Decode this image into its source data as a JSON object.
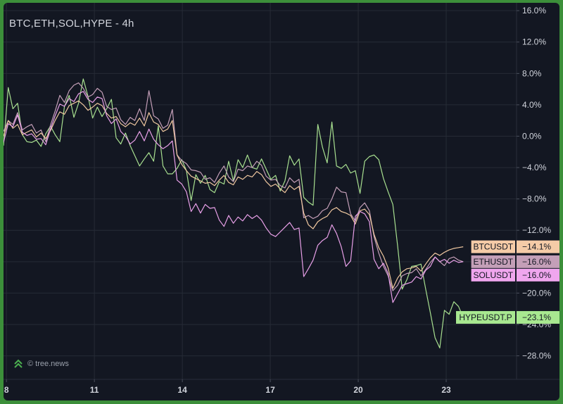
{
  "title": "BTC,ETH,SOL,HYPE - 4h",
  "watermark": "© tree.news",
  "colors": {
    "background": "#131722",
    "outer_border": "#3c8f3a",
    "grid": "#262b36",
    "axis_text": "#d1d4dc"
  },
  "chart_data": {
    "type": "line",
    "title": "BTC,ETH,SOL,HYPE - 4h",
    "xlabel": "",
    "ylabel": "",
    "y_unit": "%",
    "ylim": [
      -31,
      17
    ],
    "xlim": [
      7.9,
      25.4
    ],
    "y_ticks": [
      "16.0%",
      "12.0%",
      "8.0%",
      "4.0%",
      "0.0%",
      "−4.0%",
      "−8.0%",
      "−12.0%",
      "−16.0%",
      "−20.0%",
      "−24.0%",
      "−28.0%"
    ],
    "y_tick_values": [
      16,
      12,
      8,
      4,
      0,
      -4,
      -8,
      -12,
      -16,
      -20,
      -24,
      -28
    ],
    "x_ticks": [
      "8",
      "11",
      "14",
      "17",
      "20",
      "23"
    ],
    "x_tick_values": [
      8,
      11,
      14,
      17,
      20,
      23
    ],
    "grid": true,
    "legend": "right-axis value tags",
    "series": [
      {
        "name": "HYPEUSDT.P",
        "color": "#a8e090",
        "last_label": "−23.1%",
        "x": [
          7.9,
          8.06,
          8.22,
          8.38,
          8.54,
          8.7,
          8.86,
          9.02,
          9.18,
          9.34,
          9.5,
          9.66,
          9.82,
          9.98,
          10.14,
          10.3,
          10.46,
          10.62,
          10.78,
          10.94,
          11.1,
          11.26,
          11.42,
          11.58,
          11.74,
          11.9,
          12.06,
          12.22,
          12.38,
          12.54,
          12.7,
          12.86,
          13.02,
          13.18,
          13.34,
          13.5,
          13.66,
          13.82,
          13.98,
          14.14,
          14.3,
          14.46,
          14.62,
          14.78,
          14.94,
          15.1,
          15.26,
          15.42,
          15.58,
          15.74,
          15.9,
          16.06,
          16.22,
          16.38,
          16.54,
          16.7,
          16.86,
          17.02,
          17.18,
          17.34,
          17.5,
          17.66,
          17.82,
          17.98,
          18.14,
          18.3,
          18.46,
          18.62,
          18.78,
          18.94,
          19.1,
          19.26,
          19.42,
          19.58,
          19.74,
          19.9,
          20.06,
          20.22,
          20.38,
          20.54,
          20.7,
          20.86,
          21.02,
          21.18,
          21.34,
          21.5,
          21.66,
          21.82,
          21.98,
          22.14,
          22.3,
          22.46,
          22.62,
          22.78,
          22.94,
          23.1,
          23.26,
          23.42,
          23.58
        ],
        "values": [
          -1.2,
          6.2,
          3.5,
          4.2,
          0.2,
          -0.7,
          -0.8,
          -0.5,
          -1.3,
          0.3,
          1.3,
          0.2,
          -0.7,
          3.8,
          5.2,
          2.4,
          4.2,
          7.3,
          5.1,
          2.3,
          3.7,
          2.5,
          3.5,
          4.7,
          -0.2,
          -1.0,
          0.4,
          -1.2,
          -2.5,
          -3.8,
          -2.9,
          -2.1,
          -3.2,
          1.3,
          -3.8,
          -4.8,
          -4.8,
          -4.1,
          -3.0,
          -4.4,
          -8.2,
          -4.9,
          -6.0,
          -5.0,
          -6.8,
          -7.2,
          -5.8,
          -6.1,
          -3.2,
          -5.7,
          -3.0,
          -4.0,
          -2.4,
          -4.0,
          -4.2,
          -2.9,
          -4.2,
          -5.5,
          -5.0,
          -7.0,
          -5.7,
          -2.5,
          -3.7,
          -2.9,
          -7.8,
          -8.4,
          -8.8,
          1.5,
          -1.4,
          -3.4,
          1.8,
          -3.8,
          -4.1,
          -3.6,
          -4.7,
          -4.4,
          -7.3,
          -3.2,
          -2.6,
          -2.4,
          -3.0,
          -5.4,
          -7.1,
          -8.7,
          -13.9,
          -19.5,
          -18.3,
          -16.6,
          -16.5,
          -16.3,
          -19.5,
          -22.5,
          -25.7,
          -27.0,
          -22.2,
          -22.7,
          -21.1,
          -21.7,
          -23.1
        ]
      },
      {
        "name": "ETHUSDT",
        "color": "#c49fb8",
        "last_label": "−16.0%",
        "x": [
          7.9,
          8.06,
          8.22,
          8.38,
          8.54,
          8.7,
          8.86,
          9.02,
          9.18,
          9.34,
          9.5,
          9.66,
          9.82,
          9.98,
          10.14,
          10.3,
          10.46,
          10.62,
          10.78,
          10.94,
          11.1,
          11.26,
          11.42,
          11.58,
          11.74,
          11.9,
          12.06,
          12.22,
          12.38,
          12.54,
          12.7,
          12.86,
          13.02,
          13.18,
          13.34,
          13.5,
          13.66,
          13.82,
          13.98,
          14.14,
          14.3,
          14.46,
          14.62,
          14.78,
          14.94,
          15.1,
          15.26,
          15.42,
          15.58,
          15.74,
          15.9,
          16.06,
          16.22,
          16.38,
          16.54,
          16.7,
          16.86,
          17.02,
          17.18,
          17.34,
          17.5,
          17.66,
          17.82,
          17.98,
          18.14,
          18.3,
          18.46,
          18.62,
          18.78,
          18.94,
          19.1,
          19.26,
          19.42,
          19.58,
          19.74,
          19.9,
          20.06,
          20.22,
          20.38,
          20.54,
          20.7,
          20.86,
          21.02,
          21.18,
          21.34,
          21.5,
          21.66,
          21.82,
          21.98,
          22.14,
          22.3,
          22.46,
          22.62,
          22.78,
          22.94,
          23.1,
          23.26,
          23.42,
          23.58
        ],
        "values": [
          0.6,
          2.0,
          1.5,
          3.0,
          0.8,
          1.2,
          1.5,
          0.4,
          0.8,
          -0.7,
          1.4,
          3.2,
          5.2,
          4.3,
          5.8,
          6.5,
          6.8,
          6.1,
          5.0,
          5.3,
          6.1,
          5.6,
          3.8,
          3.4,
          3.6,
          2.1,
          1.5,
          2.4,
          2.0,
          3.5,
          2.0,
          5.8,
          2.6,
          2.2,
          1.0,
          1.4,
          3.4,
          -2.4,
          -3.1,
          -3.5,
          -4.3,
          -4.4,
          -4.6,
          -5.5,
          -5.3,
          -5.9,
          -4.7,
          -3.8,
          -5.2,
          -5.8,
          -4.2,
          -4.4,
          -3.8,
          -4.0,
          -3.2,
          -3.7,
          -5.1,
          -5.6,
          -5.5,
          -6.3,
          -6.6,
          -5.3,
          -5.9,
          -5.5,
          -10.4,
          -10.1,
          -10.5,
          -10.2,
          -9.5,
          -9.2,
          -8.0,
          -6.5,
          -7.1,
          -7.2,
          -9.9,
          -10.8,
          -9.1,
          -8.5,
          -9.5,
          -12.8,
          -14.9,
          -16.6,
          -17.8,
          -19.7,
          -19.0,
          -17.8,
          -17.5,
          -17.4,
          -16.9,
          -17.8,
          -17.0,
          -16.1,
          -15.4,
          -16.0,
          -16.5,
          -15.6,
          -15.4,
          -15.8,
          -16.0
        ]
      },
      {
        "name": "BTCUSDT",
        "color": "#f0c8a0",
        "last_label": "−14.1%",
        "x": [
          7.9,
          8.06,
          8.22,
          8.38,
          8.54,
          8.7,
          8.86,
          9.02,
          9.18,
          9.34,
          9.5,
          9.66,
          9.82,
          9.98,
          10.14,
          10.3,
          10.46,
          10.62,
          10.78,
          10.94,
          11.1,
          11.26,
          11.42,
          11.58,
          11.74,
          11.9,
          12.06,
          12.22,
          12.38,
          12.54,
          12.7,
          12.86,
          13.02,
          13.18,
          13.34,
          13.5,
          13.66,
          13.82,
          13.98,
          14.14,
          14.3,
          14.46,
          14.62,
          14.78,
          14.94,
          15.1,
          15.26,
          15.42,
          15.58,
          15.74,
          15.9,
          16.06,
          16.22,
          16.38,
          16.54,
          16.7,
          16.86,
          17.02,
          17.18,
          17.34,
          17.5,
          17.66,
          17.82,
          17.98,
          18.14,
          18.3,
          18.46,
          18.62,
          18.78,
          18.94,
          19.1,
          19.26,
          19.42,
          19.58,
          19.74,
          19.9,
          20.06,
          20.22,
          20.38,
          20.54,
          20.7,
          20.86,
          21.02,
          21.18,
          21.34,
          21.5,
          21.66,
          21.82,
          21.98,
          22.14,
          22.3,
          22.46,
          22.62,
          22.78,
          22.94,
          23.1,
          23.26,
          23.42,
          23.58
        ],
        "values": [
          0.0,
          2.0,
          1.0,
          1.5,
          0.2,
          0.5,
          0.8,
          -0.1,
          0.4,
          -0.3,
          0.7,
          2.0,
          3.1,
          2.8,
          3.9,
          4.2,
          4.5,
          4.0,
          3.3,
          3.7,
          4.2,
          3.9,
          2.9,
          2.3,
          2.5,
          1.6,
          1.2,
          1.7,
          1.4,
          2.3,
          1.3,
          3.0,
          1.8,
          1.5,
          0.6,
          0.9,
          2.0,
          -2.4,
          -3.6,
          -4.4,
          -5.1,
          -5.4,
          -5.7,
          -6.0,
          -5.9,
          -6.3,
          -5.6,
          -5.0,
          -5.9,
          -6.2,
          -5.2,
          -5.5,
          -5.0,
          -5.2,
          -4.5,
          -4.9,
          -5.8,
          -6.4,
          -6.1,
          -6.7,
          -7.2,
          -6.3,
          -6.8,
          -6.4,
          -9.8,
          -11.3,
          -11.8,
          -10.9,
          -10.5,
          -10.2,
          -9.4,
          -9.1,
          -9.6,
          -9.8,
          -10.1,
          -11.2,
          -9.5,
          -9.3,
          -10.0,
          -12.5,
          -14.2,
          -15.3,
          -16.8,
          -19.4,
          -18.1,
          -17.3,
          -16.9,
          -16.8,
          -16.6,
          -17.2,
          -16.3,
          -15.5,
          -14.9,
          -15.2,
          -14.8,
          -14.5,
          -14.3,
          -14.2,
          -14.1
        ]
      },
      {
        "name": "SOLUSDT",
        "color": "#e8a0e8",
        "last_label": "−16.0%",
        "x": [
          7.9,
          8.06,
          8.22,
          8.38,
          8.54,
          8.7,
          8.86,
          9.02,
          9.18,
          9.34,
          9.5,
          9.66,
          9.82,
          9.98,
          10.14,
          10.3,
          10.46,
          10.62,
          10.78,
          10.94,
          11.1,
          11.26,
          11.42,
          11.58,
          11.74,
          11.9,
          12.06,
          12.22,
          12.38,
          12.54,
          12.7,
          12.86,
          13.02,
          13.18,
          13.34,
          13.5,
          13.66,
          13.82,
          13.98,
          14.14,
          14.3,
          14.46,
          14.62,
          14.78,
          14.94,
          15.1,
          15.26,
          15.42,
          15.58,
          15.74,
          15.9,
          16.06,
          16.22,
          16.38,
          16.54,
          16.7,
          16.86,
          17.02,
          17.18,
          17.34,
          17.5,
          17.66,
          17.82,
          17.98,
          18.14,
          18.3,
          18.46,
          18.62,
          18.78,
          18.94,
          19.1,
          19.26,
          19.42,
          19.58,
          19.74,
          19.9,
          20.06,
          20.22,
          20.38,
          20.54,
          20.7,
          20.86,
          21.02,
          21.18,
          21.34,
          21.5,
          21.66,
          21.82,
          21.98,
          22.14,
          22.3,
          22.46,
          22.62,
          22.78,
          22.94,
          23.1,
          23.26,
          23.42,
          23.58
        ],
        "values": [
          -0.8,
          1.6,
          1.2,
          2.7,
          0.5,
          0.1,
          0.3,
          -0.4,
          -0.3,
          -1.1,
          0.9,
          2.6,
          4.1,
          3.8,
          4.8,
          4.4,
          5.4,
          5.7,
          4.7,
          4.3,
          5.0,
          4.8,
          2.6,
          1.6,
          2.2,
          0.6,
          0.0,
          -1.0,
          -0.5,
          0.6,
          -0.6,
          0.9,
          -0.4,
          -1.1,
          -1.6,
          -1.2,
          -0.6,
          -5.6,
          -6.1,
          -7.1,
          -9.6,
          -8.6,
          -9.8,
          -8.7,
          -9.2,
          -9.1,
          -10.7,
          -11.5,
          -10.1,
          -11.1,
          -10.3,
          -10.8,
          -10.0,
          -10.5,
          -10.1,
          -10.7,
          -11.7,
          -12.5,
          -12.8,
          -12.2,
          -11.6,
          -11.0,
          -11.9,
          -11.7,
          -17.9,
          -16.9,
          -15.8,
          -13.9,
          -13.3,
          -12.9,
          -11.3,
          -12.4,
          -14.1,
          -16.6,
          -15.9,
          -10.2,
          -9.6,
          -9.9,
          -10.9,
          -15.7,
          -16.9,
          -16.2,
          -17.5,
          -21.2,
          -20.1,
          -19.0,
          -18.8,
          -18.6,
          -17.9,
          -18.2,
          -17.1,
          -16.6,
          -15.4,
          -16.0,
          -15.7,
          -16.2,
          -15.8,
          -16.1,
          -16.0
        ]
      }
    ],
    "value_tags": [
      {
        "label": "BTCUSDT",
        "value_text": "−14.1%",
        "at": -14.1,
        "color": "#f5cba7"
      },
      {
        "label": "ETHUSDT",
        "value_text": "−16.0%",
        "at": -16.0,
        "color": "#c49fb8"
      },
      {
        "label": "SOLUSDT",
        "value_text": "−16.0%",
        "at": -16.0,
        "color": "#f0a6ee"
      },
      {
        "label": "HYPEUSDT.P",
        "value_text": "−23.1%",
        "at": -23.1,
        "color": "#a8e890"
      }
    ]
  }
}
